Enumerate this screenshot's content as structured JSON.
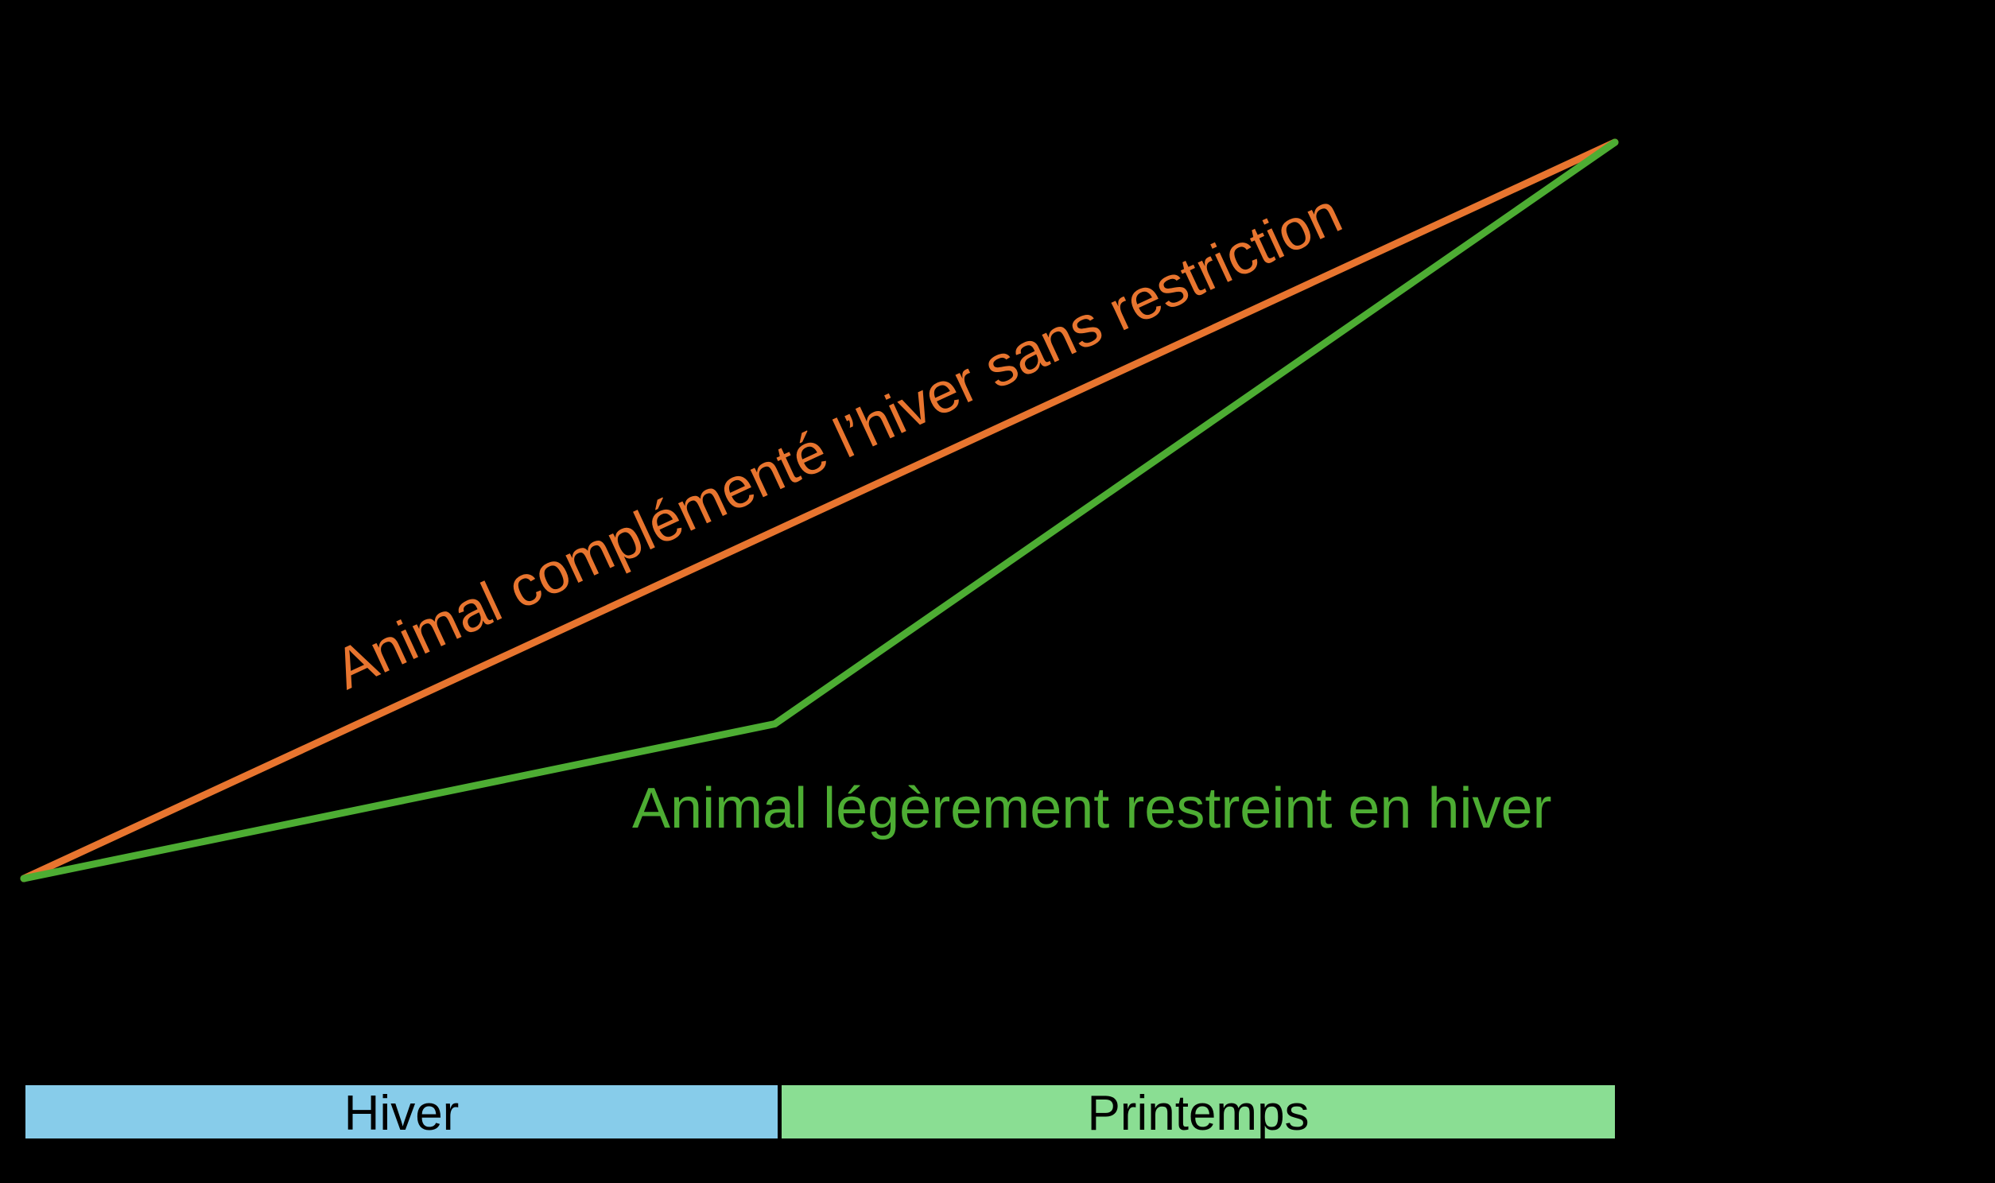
{
  "chart_data": {
    "type": "line",
    "title": "",
    "background_color": "#000000",
    "axes_visible": false,
    "grid": false,
    "x_range_normalized": [
      0,
      1
    ],
    "y_range_normalized": [
      0,
      1
    ],
    "series": [
      {
        "name": "Animal complémenté l’hiver sans restriction",
        "color": "#E8752F",
        "points": [
          [
            0,
            0
          ],
          [
            1,
            1
          ]
        ],
        "label_rotation_deg": -24.85,
        "label_position": "along-line"
      },
      {
        "name": "Animal légèrement restreint en hiver",
        "color": "#4DAD33",
        "points": [
          [
            0,
            0
          ],
          [
            0.472,
            0.21
          ],
          [
            1,
            1
          ]
        ],
        "label_rotation_deg": 0,
        "label_position": "below-kink"
      }
    ],
    "seasons": [
      {
        "label": "Hiver",
        "color": "#87CCEA",
        "x_start": 0.0,
        "x_end": 0.473
      },
      {
        "label": "Printemps",
        "color": "#8ADE93",
        "x_start": 0.476,
        "x_end": 1.0
      }
    ]
  }
}
